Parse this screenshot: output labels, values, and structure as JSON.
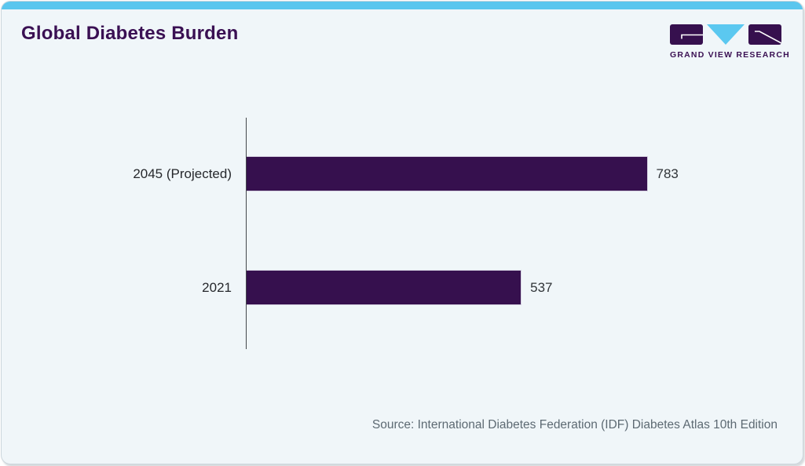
{
  "card": {
    "title": "Global Diabetes Burden",
    "accent_color": "#5ac6ee",
    "background_color": "#f0f6f9",
    "title_color": "#3a1053"
  },
  "logo": {
    "text": "GRAND VIEW RESEARCH",
    "purple": "#36104e",
    "blue": "#5bc8f0"
  },
  "chart_data": {
    "type": "bar",
    "orientation": "horizontal",
    "title": "Global Diabetes Burden",
    "categories": [
      "2045 (Projected)",
      "2021"
    ],
    "values": [
      783,
      537
    ],
    "xlabel": "",
    "ylabel": "",
    "xlim": [
      0,
      1000
    ],
    "grid": false,
    "legend": false,
    "bar_color": "#36104e",
    "value_label_position": "right-of-bar"
  },
  "footer": {
    "source": "Source: International Diabetes Federation (IDF) Diabetes Atlas 10th Edition"
  }
}
